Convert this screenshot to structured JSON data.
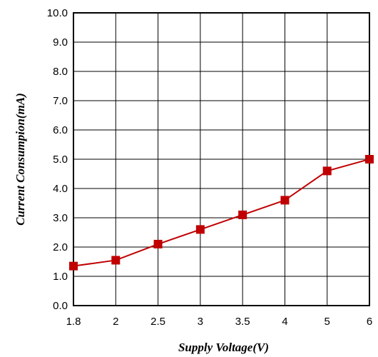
{
  "chart_data": {
    "type": "line",
    "title": "",
    "xlabel": "Supply Voltage(V)",
    "ylabel": "Current  Consumpion(mA)",
    "categories": [
      "1.8",
      "2",
      "2.5",
      "3",
      "3.5",
      "4",
      "5",
      "6"
    ],
    "y_ticks": [
      "0.0",
      "1.0",
      "2.0",
      "3.0",
      "4.0",
      "5.0",
      "6.0",
      "7.0",
      "8.0",
      "9.0",
      "10.0"
    ],
    "ylim": [
      0,
      10
    ],
    "grid": true,
    "series": [
      {
        "values": [
          1.35,
          1.55,
          2.1,
          2.6,
          3.1,
          3.6,
          4.6,
          5.0
        ],
        "color": "#c00000",
        "marker": "square"
      }
    ]
  }
}
